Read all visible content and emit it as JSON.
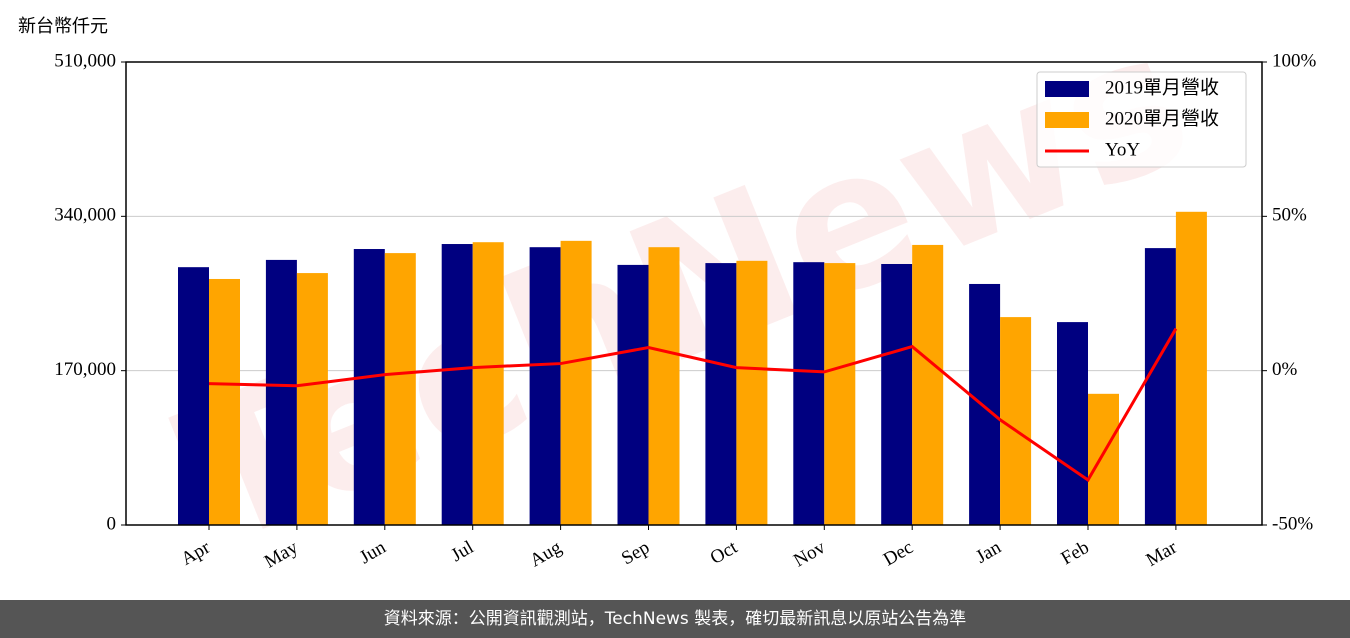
{
  "chart_data": {
    "type": "bar",
    "unit_label": "新台幣仟元",
    "watermark": "TechNews",
    "categories": [
      "Apr",
      "May",
      "Jun",
      "Jul",
      "Aug",
      "Sep",
      "Oct",
      "Nov",
      "Dec",
      "Jan",
      "Feb",
      "Mar"
    ],
    "series": [
      {
        "name": "2019單月營收",
        "color": "#000080",
        "values": [
          284000,
          292000,
          304000,
          309500,
          306000,
          286500,
          288500,
          289500,
          287500,
          265500,
          223500,
          305000
        ]
      },
      {
        "name": "2020單月營收",
        "color": "#ffa500",
        "values": [
          271000,
          277500,
          299500,
          311500,
          313000,
          306000,
          291000,
          288500,
          308500,
          229000,
          144500,
          345000
        ]
      },
      {
        "name": "YoY",
        "color": "#ff0000",
        "type": "line",
        "axis": "y2",
        "values": [
          -4.2,
          -4.9,
          -1.3,
          1.0,
          2.3,
          7.5,
          1.0,
          -0.4,
          7.8,
          -15.9,
          -35.4,
          13.6
        ]
      }
    ],
    "ylim": [
      0,
      510000
    ],
    "yticks": [
      0,
      {
        "value": 170000,
        "label": "170,000"
      },
      {
        "value": 340000,
        "label": "340,000"
      },
      {
        "value": 510000,
        "label": "510,000"
      }
    ],
    "y2lim": [
      -50,
      100
    ],
    "y2ticks": [
      {
        "value": -50,
        "label": "-50%"
      },
      {
        "value": 0,
        "label": "0%"
      },
      {
        "value": 50,
        "label": "50%"
      },
      {
        "value": 100,
        "label": "100%"
      }
    ],
    "grid": true,
    "legend": "upper right",
    "footer": "資料來源：公開資訊觀測站，TechNews 製表，確切最新訊息以原站公告為準"
  }
}
